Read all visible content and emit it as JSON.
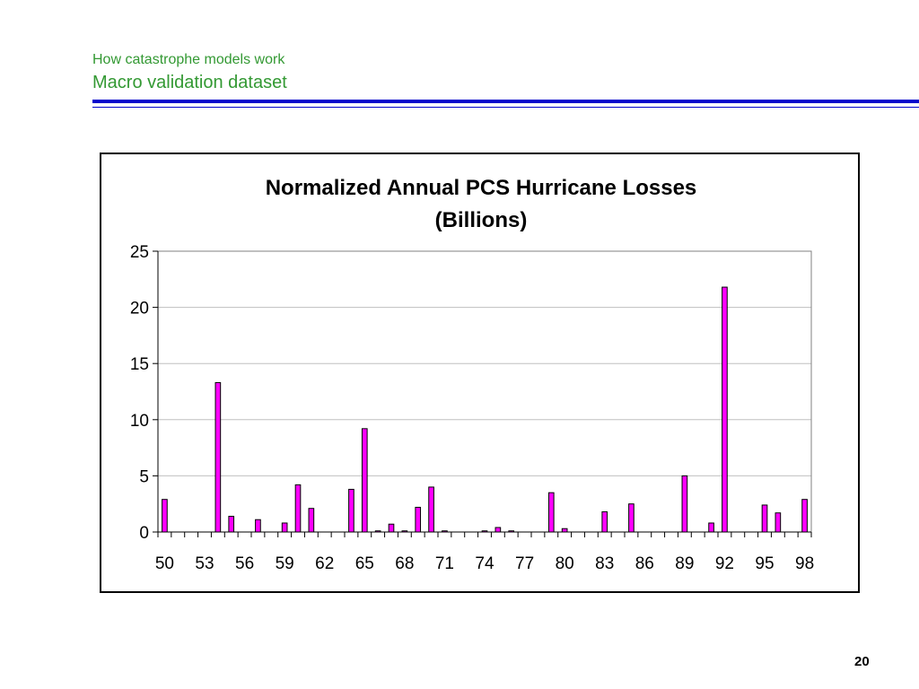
{
  "header": {
    "kicker": "How catastrophe models work",
    "title": "Macro validation dataset"
  },
  "page_number": "20",
  "colors": {
    "header_text": "#339933",
    "rule": "#0000cc",
    "bar_fill": "#ff00ff",
    "bar_stroke": "#000000",
    "gridline": "#c0c0c0"
  },
  "chart_data": {
    "type": "bar",
    "title": "Normalized Annual PCS Hurricane Losses",
    "subtitle": "(Billions)",
    "xlabel": "",
    "ylabel": "",
    "ylim": [
      0,
      25
    ],
    "y_ticks": [
      0,
      5,
      10,
      15,
      20,
      25
    ],
    "x_tick_labels": [
      "50",
      "53",
      "56",
      "59",
      "62",
      "65",
      "68",
      "71",
      "74",
      "77",
      "80",
      "83",
      "86",
      "89",
      "92",
      "95",
      "98"
    ],
    "grid": true,
    "legend": "none",
    "categories": [
      "50",
      "51",
      "52",
      "53",
      "54",
      "55",
      "56",
      "57",
      "58",
      "59",
      "60",
      "61",
      "62",
      "63",
      "64",
      "65",
      "66",
      "67",
      "68",
      "69",
      "70",
      "71",
      "72",
      "73",
      "74",
      "75",
      "76",
      "77",
      "78",
      "79",
      "80",
      "81",
      "82",
      "83",
      "84",
      "85",
      "86",
      "87",
      "88",
      "89",
      "90",
      "91",
      "92",
      "93",
      "94",
      "95",
      "96",
      "97",
      "98"
    ],
    "values": [
      2.9,
      0,
      0,
      0,
      13.3,
      1.4,
      0,
      1.1,
      0,
      0.8,
      4.2,
      2.1,
      0,
      0,
      3.8,
      9.2,
      0.1,
      0.7,
      0.1,
      2.2,
      4.0,
      0.1,
      0,
      0,
      0.1,
      0.4,
      0.1,
      0,
      0,
      3.5,
      0.3,
      0,
      0,
      1.8,
      0,
      2.5,
      0,
      0,
      0,
      5.0,
      0,
      0.8,
      21.8,
      0,
      0,
      2.4,
      1.7,
      0,
      2.9
    ]
  }
}
